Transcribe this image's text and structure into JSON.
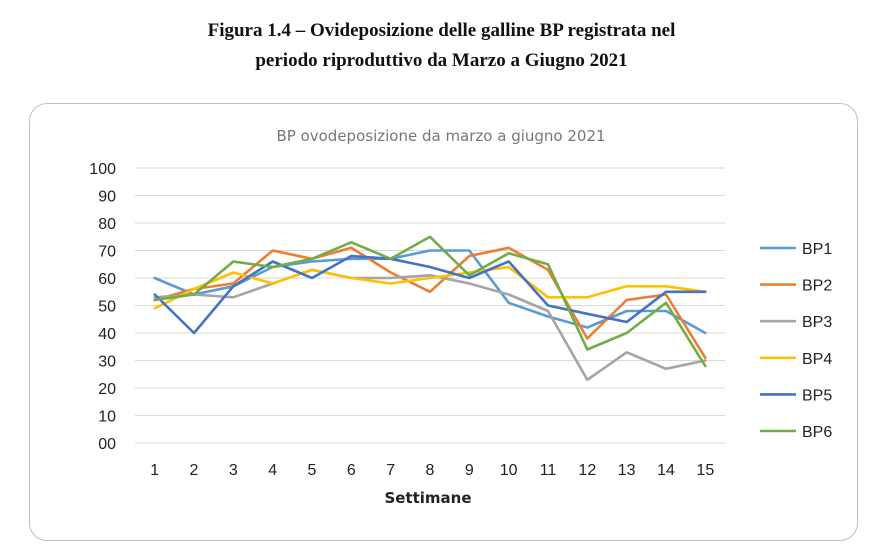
{
  "figure": {
    "title_line1": "Figura 1.4 – Ovideposizione delle galline BP registrata nel",
    "title_line2": "periodo riproduttivo da Marzo a Giugno 2021"
  },
  "chart_data": {
    "type": "line",
    "title": "BP ovodeposizione da marzo a giugno 2021",
    "xlabel": "Settimane",
    "ylabel": "",
    "x": [
      1,
      2,
      3,
      4,
      5,
      6,
      7,
      8,
      9,
      10,
      11,
      12,
      13,
      14,
      15
    ],
    "ylim": [
      0,
      100
    ],
    "yticks": [
      "00",
      "10",
      "20",
      "30",
      "40",
      "50",
      "60",
      "70",
      "80",
      "90",
      "100"
    ],
    "grid": true,
    "legend": "right",
    "series": [
      {
        "name": "BP1",
        "color": "#5b9bd5",
        "values": [
          60,
          54,
          57,
          64,
          66,
          67,
          67,
          70,
          70,
          51,
          46,
          42,
          48,
          48,
          40
        ]
      },
      {
        "name": "BP2",
        "color": "#ed7d31",
        "values": [
          52,
          56,
          58,
          70,
          67,
          71,
          62,
          55,
          68,
          71,
          63,
          38,
          52,
          54,
          31
        ]
      },
      {
        "name": "BP3",
        "color": "#a5a5a5",
        "values": [
          53,
          54,
          53,
          58,
          63,
          60,
          60,
          61,
          58,
          54,
          48,
          23,
          33,
          27,
          30
        ]
      },
      {
        "name": "BP4",
        "color": "#ffc000",
        "values": [
          49,
          56,
          62,
          58,
          63,
          60,
          58,
          60,
          62,
          64,
          53,
          53,
          57,
          57,
          55
        ]
      },
      {
        "name": "BP5",
        "color": "#4472c4",
        "values": [
          54,
          40,
          57,
          66,
          60,
          68,
          67,
          64,
          60,
          66,
          50,
          47,
          44,
          55,
          55
        ]
      },
      {
        "name": "BP6",
        "color": "#70ad47",
        "values": [
          52,
          54,
          66,
          64,
          67,
          73,
          67,
          75,
          61,
          69,
          65,
          34,
          40,
          51,
          28
        ]
      }
    ]
  }
}
